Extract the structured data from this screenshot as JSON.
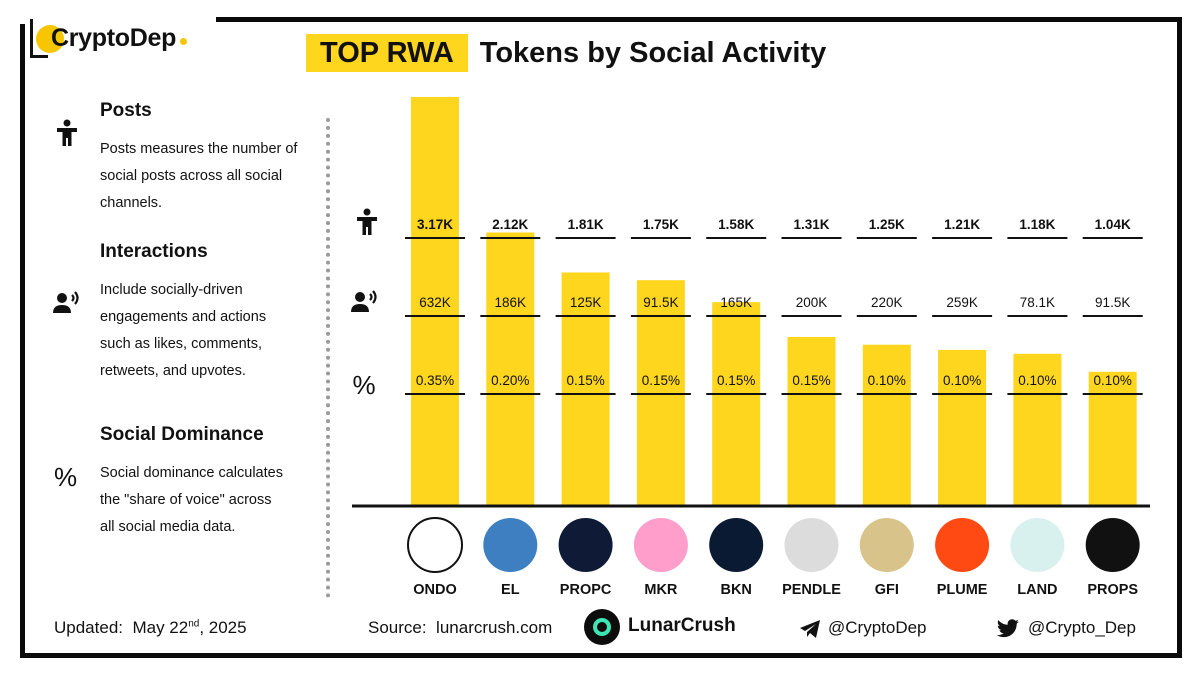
{
  "brand": {
    "name": "CryptoDep"
  },
  "title": {
    "highlight": "TOP RWA",
    "rest": "Tokens by Social Activity"
  },
  "legend": {
    "posts": {
      "heading": "Posts",
      "text": "Posts measures the number of social posts across all social channels.",
      "icon": "person-icon"
    },
    "interactions": {
      "heading": "Interactions",
      "text": "Include socially-driven engagements and actions such as likes, comments, retweets, and upvotes.",
      "icon": "speaking-person-icon"
    },
    "dominance": {
      "heading": "Social Dominance",
      "text": "Social dominance calculates the \"share of voice\" across all social media data.",
      "glyph": "%"
    }
  },
  "row_markers": {
    "dominance_glyph": "%"
  },
  "chart_data": {
    "type": "bar",
    "categories": [
      "ONDO",
      "EL",
      "PROPC",
      "MKR",
      "BKN",
      "PENDLE",
      "GFI",
      "PLUME",
      "LAND",
      "PROPS"
    ],
    "posts": [
      3.17,
      2.12,
      1.81,
      1.75,
      1.58,
      1.31,
      1.25,
      1.21,
      1.18,
      1.04
    ],
    "posts_labels": [
      "3.17K",
      "2.12K",
      "1.81K",
      "1.75K",
      "1.58K",
      "1.31K",
      "1.25K",
      "1.21K",
      "1.18K",
      "1.04K"
    ],
    "interactions_labels": [
      "632K",
      "186K",
      "125K",
      "91.5K",
      "165K",
      "200K",
      "220K",
      "259K",
      "78.1K",
      "91.5K"
    ],
    "dominance_labels": [
      "0.35%",
      "0.20%",
      "0.15%",
      "0.15%",
      "0.15%",
      "0.15%",
      "0.10%",
      "0.10%",
      "0.10%",
      "0.10%"
    ],
    "bar_color": "#fed61e",
    "logo_colors": [
      "#ffffff",
      "#3d7fc1",
      "#0f1b36",
      "#ff9ecb",
      "#0b1a33",
      "#dcdcdc",
      "#d8c48a",
      "#ff4a14",
      "#d9f1ee",
      "#111111"
    ]
  },
  "footer": {
    "updated_label": "Updated:",
    "updated_date": "May 22",
    "updated_suffix": "nd",
    "updated_year": ", 2025",
    "source_label": "Source:",
    "source_value": "lunarcrush.com",
    "lunarcrush": "LunarCrush",
    "telegram": "@CryptoDep",
    "twitter": "@Crypto_Dep"
  }
}
